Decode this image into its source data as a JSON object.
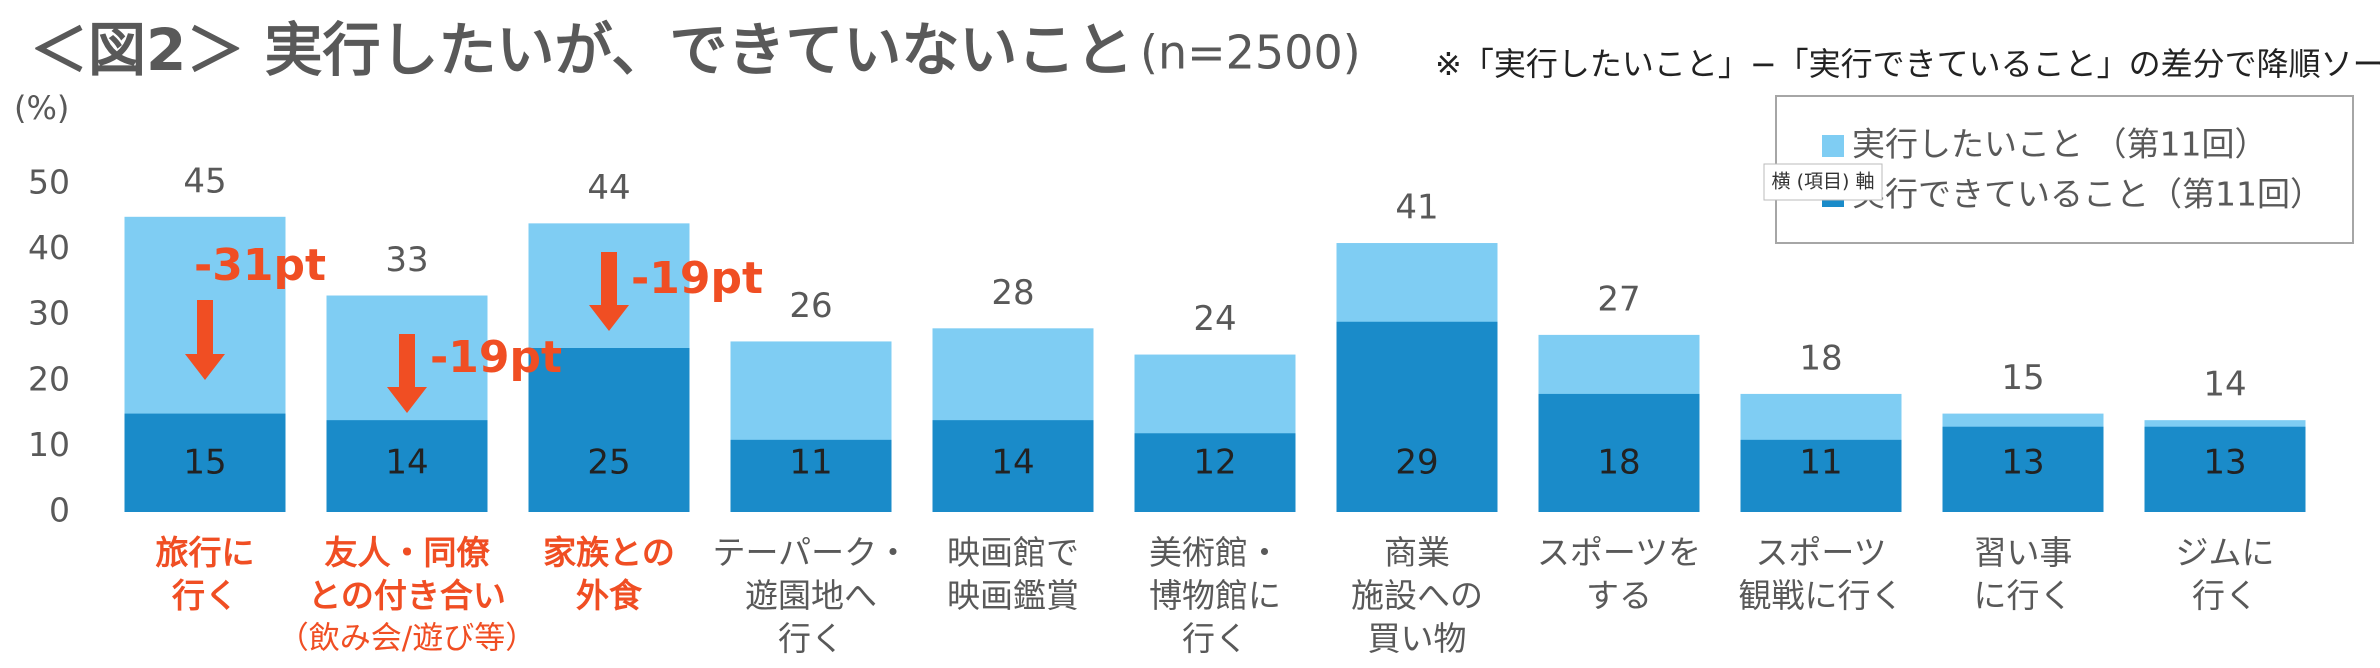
{
  "chart_data": {
    "type": "overlap_bar",
    "title": "＜図2＞ 実行したいが、できていないこと",
    "subtitle": "(n=2500)",
    "note": "※「実行したいこと」−「実行できていること」の差分で降順ソート",
    "y_axis_label": "(%)",
    "categories": [
      "旅行に\n行く",
      "友人・同僚\nとの付き合い",
      "家族との\n外食",
      "テーパーク・\n遊園地へ\n行く",
      "映画館で\n映画鑑賞",
      "美術館・\n博物館に\n行く",
      "商業\n施設への\n買い物",
      "スポーツを\nする",
      "スポーツ\n観戦に行く",
      "習い事\nに行く",
      "ジムに\n行く"
    ],
    "category_notes": [
      null,
      "（飲み会/遊び等）",
      null,
      null,
      null,
      null,
      null,
      null,
      null,
      null,
      null
    ],
    "highlight_categories": [
      0,
      1,
      2
    ],
    "highlight_color": "#f04e23",
    "series": [
      {
        "name": "実行したいこと （第11回）",
        "color": "#7fcdf3",
        "values": [
          45,
          33,
          44,
          26,
          28,
          24,
          41,
          27,
          18,
          15,
          14
        ]
      },
      {
        "name": "実行できていること（第11回）",
        "color": "#1a8bc9",
        "values": [
          15,
          14,
          25,
          11,
          14,
          12,
          29,
          18,
          11,
          13,
          13
        ]
      }
    ],
    "annotations": [
      "-31pt",
      "-19pt",
      "-19pt"
    ],
    "annotation_color": "#f04e23",
    "tooltip": "横 (項目) 軸",
    "ylim": [
      0,
      50
    ],
    "yticks": [
      0,
      10,
      20,
      30,
      40,
      50
    ],
    "legend": "upper right"
  }
}
